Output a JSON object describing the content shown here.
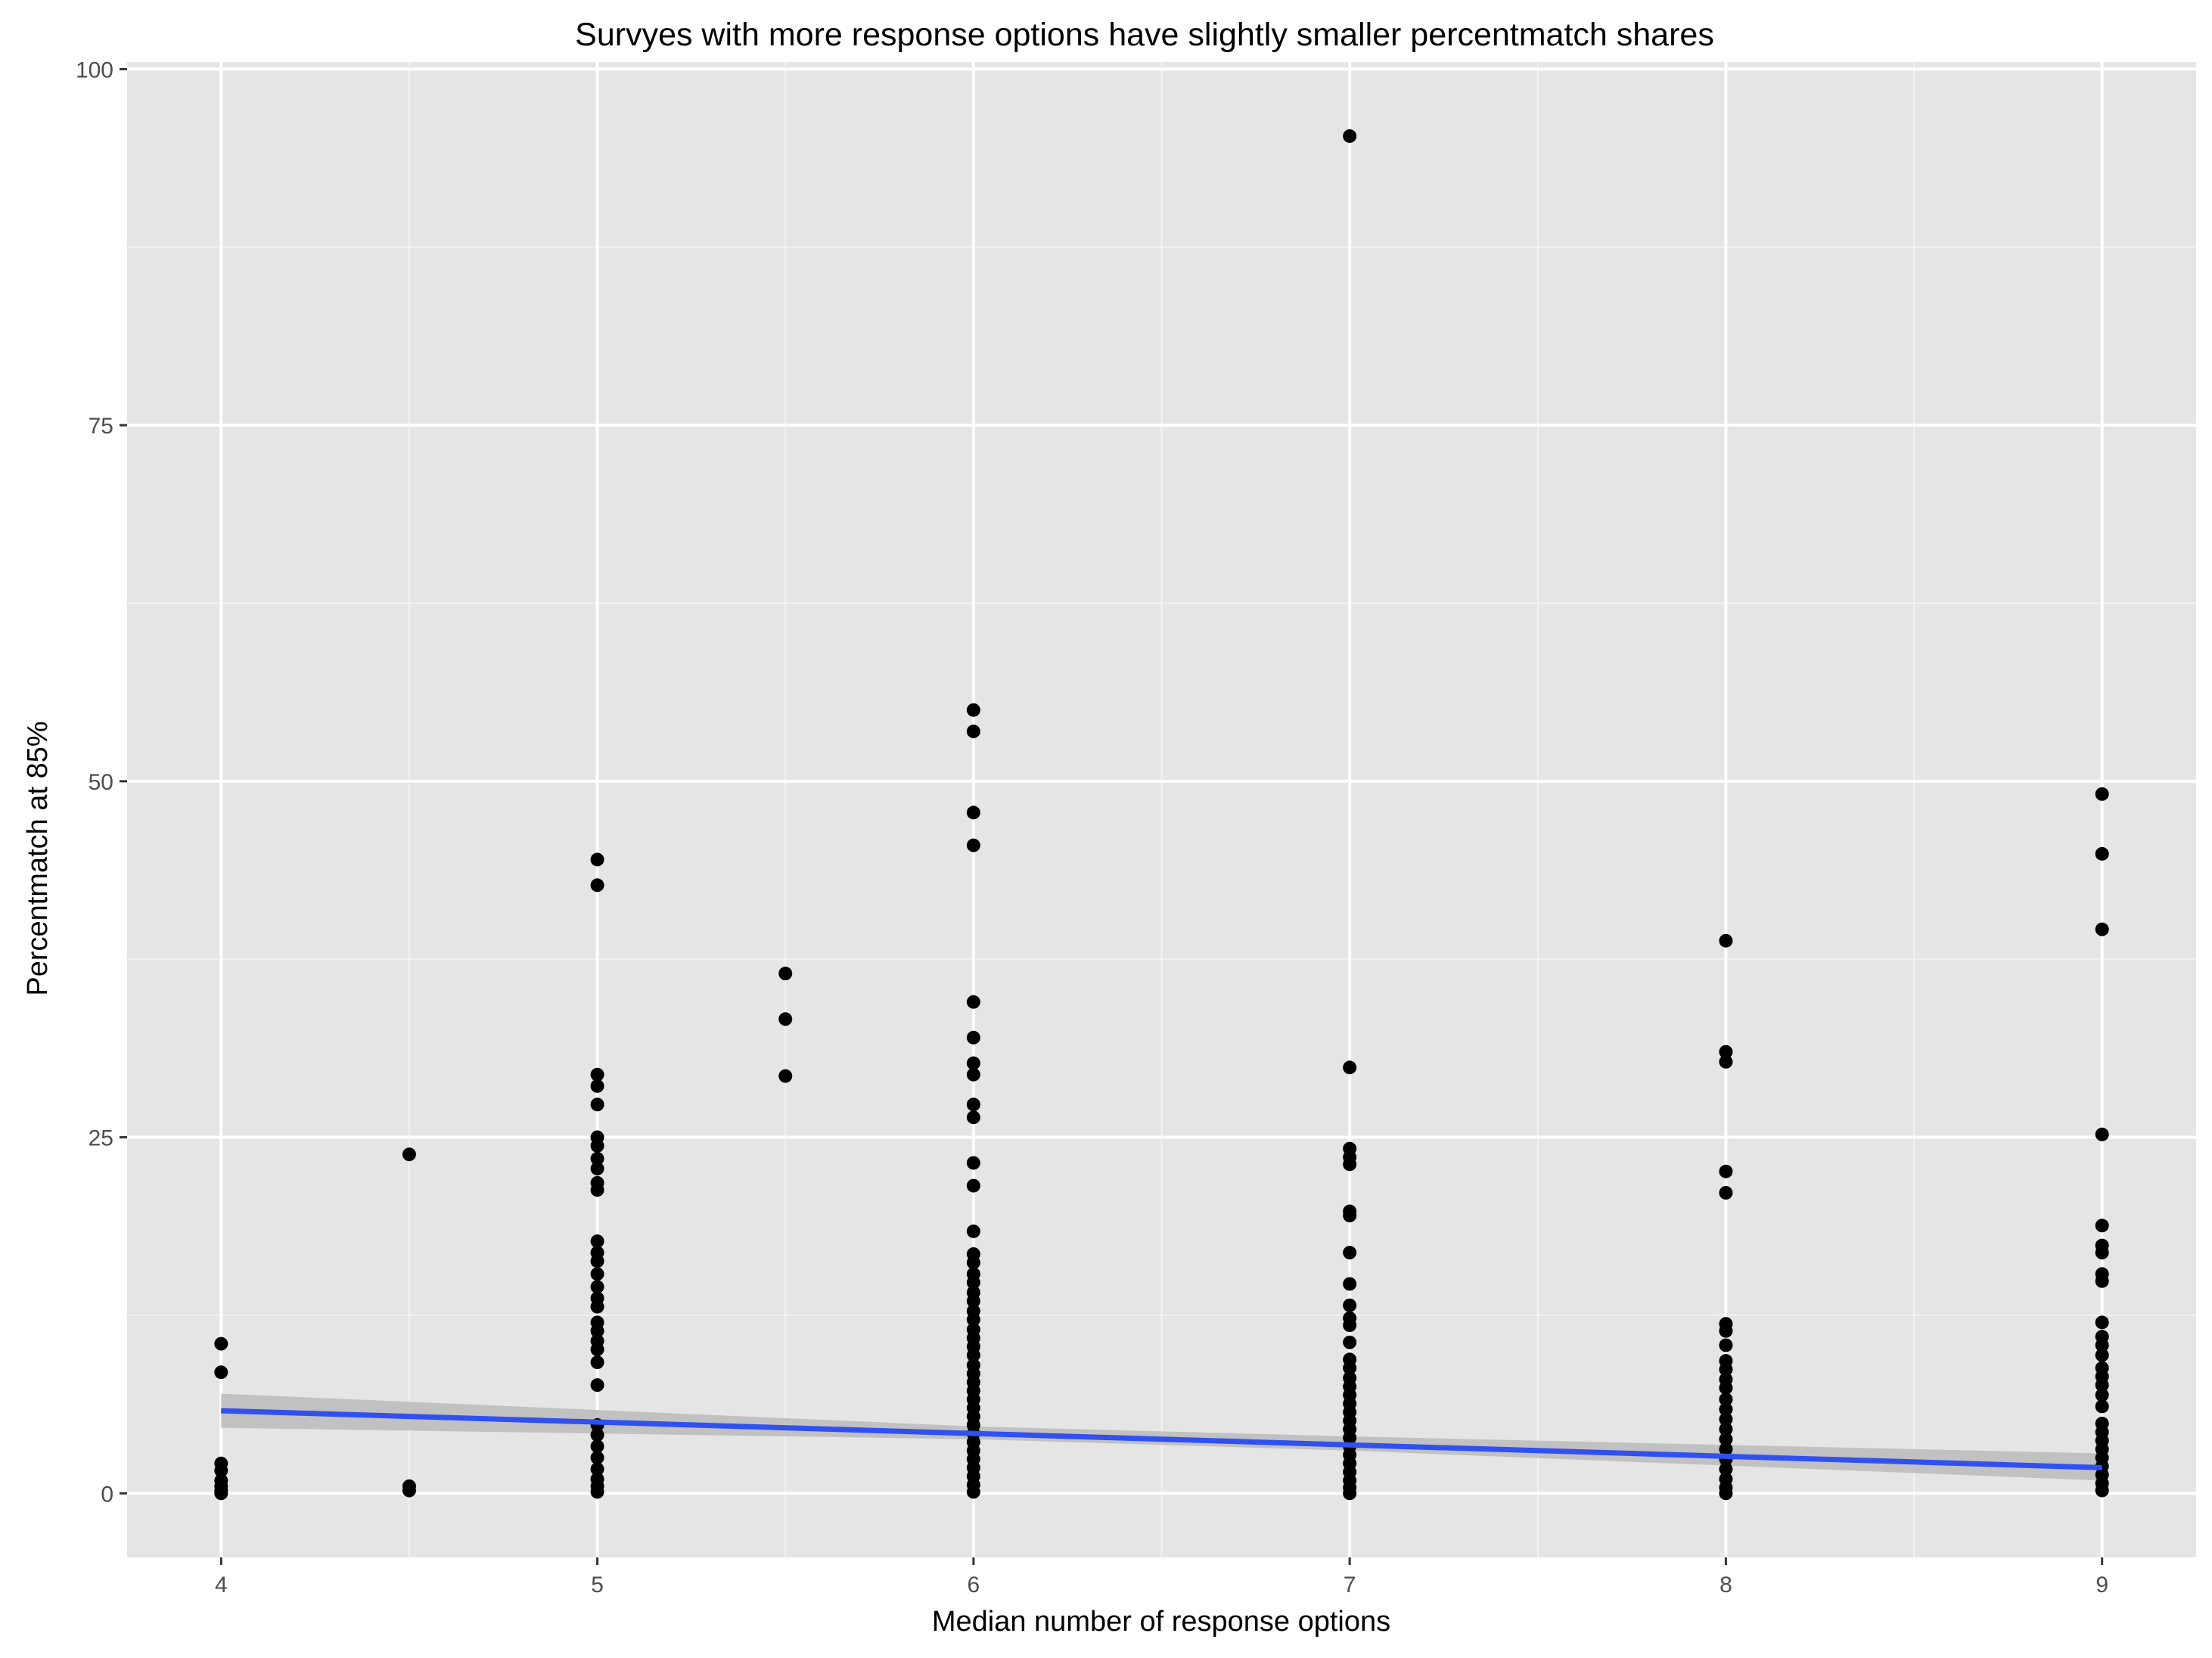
{
  "chart_data": {
    "type": "scatter",
    "title": "Survyes with more response options have slightly smaller percentmatch shares",
    "xlabel": "Median number of response options",
    "ylabel": "Percentmatch at 85%",
    "xlim": [
      3.75,
      9.25
    ],
    "ylim": [
      -4.5,
      100.5
    ],
    "x_ticks": [
      4,
      5,
      6,
      7,
      8,
      9
    ],
    "y_ticks": [
      0,
      25,
      50,
      75,
      100
    ],
    "x_tick_labels": [
      "4",
      "5",
      "6",
      "7",
      "8",
      "9"
    ],
    "y_tick_labels": [
      "0",
      "25",
      "50",
      "75",
      "100"
    ],
    "grid": true,
    "legend": "none",
    "colors": {
      "panel_background": "#e5e5e5",
      "grid_major": "#ffffff",
      "grid_minor": "#f2f2f2",
      "points": "#000000",
      "trend_line": "#3050f0",
      "confidence_band": "#bdbdbd"
    },
    "points": [
      {
        "x": 4,
        "y": 10.5
      },
      {
        "x": 4,
        "y": 8.5
      },
      {
        "x": 4,
        "y": 2.1
      },
      {
        "x": 4,
        "y": 1.6
      },
      {
        "x": 4,
        "y": 0.9
      },
      {
        "x": 4,
        "y": 0.5
      },
      {
        "x": 4,
        "y": 0.2
      },
      {
        "x": 4,
        "y": 0.0
      },
      {
        "x": 4.5,
        "y": 23.8
      },
      {
        "x": 4.5,
        "y": 0.5
      },
      {
        "x": 4.5,
        "y": 0.2
      },
      {
        "x": 5,
        "y": 44.5
      },
      {
        "x": 5,
        "y": 42.7
      },
      {
        "x": 5,
        "y": 29.4
      },
      {
        "x": 5,
        "y": 28.6
      },
      {
        "x": 5,
        "y": 27.3
      },
      {
        "x": 5,
        "y": 25.0
      },
      {
        "x": 5,
        "y": 24.4
      },
      {
        "x": 5,
        "y": 23.5
      },
      {
        "x": 5,
        "y": 22.8
      },
      {
        "x": 5,
        "y": 21.8
      },
      {
        "x": 5,
        "y": 21.3
      },
      {
        "x": 5,
        "y": 17.7
      },
      {
        "x": 5,
        "y": 16.9
      },
      {
        "x": 5,
        "y": 16.3
      },
      {
        "x": 5,
        "y": 15.4
      },
      {
        "x": 5,
        "y": 14.5
      },
      {
        "x": 5,
        "y": 13.7
      },
      {
        "x": 5,
        "y": 13.1
      },
      {
        "x": 5,
        "y": 12.0
      },
      {
        "x": 5,
        "y": 11.4
      },
      {
        "x": 5,
        "y": 10.7
      },
      {
        "x": 5,
        "y": 10.1
      },
      {
        "x": 5,
        "y": 9.2
      },
      {
        "x": 5,
        "y": 7.6
      },
      {
        "x": 5,
        "y": 4.8
      },
      {
        "x": 5,
        "y": 4.1
      },
      {
        "x": 5,
        "y": 3.3
      },
      {
        "x": 5,
        "y": 2.5
      },
      {
        "x": 5,
        "y": 1.7
      },
      {
        "x": 5,
        "y": 1.0
      },
      {
        "x": 5,
        "y": 0.5
      },
      {
        "x": 5,
        "y": 0.1
      },
      {
        "x": 5.5,
        "y": 36.5
      },
      {
        "x": 5.5,
        "y": 33.3
      },
      {
        "x": 5.5,
        "y": 29.3
      },
      {
        "x": 6,
        "y": 55.0
      },
      {
        "x": 6,
        "y": 53.5
      },
      {
        "x": 6,
        "y": 47.8
      },
      {
        "x": 6,
        "y": 45.5
      },
      {
        "x": 6,
        "y": 34.5
      },
      {
        "x": 6,
        "y": 32.0
      },
      {
        "x": 6,
        "y": 30.2
      },
      {
        "x": 6,
        "y": 29.4
      },
      {
        "x": 6,
        "y": 27.3
      },
      {
        "x": 6,
        "y": 26.4
      },
      {
        "x": 6,
        "y": 23.2
      },
      {
        "x": 6,
        "y": 21.6
      },
      {
        "x": 6,
        "y": 18.4
      },
      {
        "x": 6,
        "y": 16.8
      },
      {
        "x": 6,
        "y": 16.2
      },
      {
        "x": 6,
        "y": 15.4
      },
      {
        "x": 6,
        "y": 14.8
      },
      {
        "x": 6,
        "y": 14.1
      },
      {
        "x": 6,
        "y": 13.5
      },
      {
        "x": 6,
        "y": 12.8
      },
      {
        "x": 6,
        "y": 12.2
      },
      {
        "x": 6,
        "y": 11.5
      },
      {
        "x": 6,
        "y": 10.9
      },
      {
        "x": 6,
        "y": 10.3
      },
      {
        "x": 6,
        "y": 9.7
      },
      {
        "x": 6,
        "y": 9.0
      },
      {
        "x": 6,
        "y": 8.4
      },
      {
        "x": 6,
        "y": 7.8
      },
      {
        "x": 6,
        "y": 7.2
      },
      {
        "x": 6,
        "y": 6.6
      },
      {
        "x": 6,
        "y": 6.0
      },
      {
        "x": 6,
        "y": 5.4
      },
      {
        "x": 6,
        "y": 4.8
      },
      {
        "x": 6,
        "y": 4.2
      },
      {
        "x": 6,
        "y": 3.6
      },
      {
        "x": 6,
        "y": 3.0
      },
      {
        "x": 6,
        "y": 2.4
      },
      {
        "x": 6,
        "y": 1.8
      },
      {
        "x": 6,
        "y": 1.2
      },
      {
        "x": 6,
        "y": 0.6
      },
      {
        "x": 6,
        "y": 0.1
      },
      {
        "x": 7,
        "y": 95.3
      },
      {
        "x": 7,
        "y": 29.9
      },
      {
        "x": 7,
        "y": 24.2
      },
      {
        "x": 7,
        "y": 23.6
      },
      {
        "x": 7,
        "y": 23.1
      },
      {
        "x": 7,
        "y": 19.8
      },
      {
        "x": 7,
        "y": 19.5
      },
      {
        "x": 7,
        "y": 16.9
      },
      {
        "x": 7,
        "y": 14.7
      },
      {
        "x": 7,
        "y": 13.2
      },
      {
        "x": 7,
        "y": 12.3
      },
      {
        "x": 7,
        "y": 11.8
      },
      {
        "x": 7,
        "y": 10.6
      },
      {
        "x": 7,
        "y": 9.4
      },
      {
        "x": 7,
        "y": 8.8
      },
      {
        "x": 7,
        "y": 8.1
      },
      {
        "x": 7,
        "y": 7.5
      },
      {
        "x": 7,
        "y": 6.9
      },
      {
        "x": 7,
        "y": 6.3
      },
      {
        "x": 7,
        "y": 5.7
      },
      {
        "x": 7,
        "y": 5.1
      },
      {
        "x": 7,
        "y": 4.5
      },
      {
        "x": 7,
        "y": 3.9
      },
      {
        "x": 7,
        "y": 3.3
      },
      {
        "x": 7,
        "y": 2.7
      },
      {
        "x": 7,
        "y": 2.1
      },
      {
        "x": 7,
        "y": 1.5
      },
      {
        "x": 7,
        "y": 0.9
      },
      {
        "x": 7,
        "y": 0.4
      },
      {
        "x": 7,
        "y": 0.0
      },
      {
        "x": 8,
        "y": 38.8
      },
      {
        "x": 8,
        "y": 31.0
      },
      {
        "x": 8,
        "y": 30.3
      },
      {
        "x": 8,
        "y": 22.6
      },
      {
        "x": 8,
        "y": 21.1
      },
      {
        "x": 8,
        "y": 11.9
      },
      {
        "x": 8,
        "y": 11.4
      },
      {
        "x": 8,
        "y": 10.4
      },
      {
        "x": 8,
        "y": 9.3
      },
      {
        "x": 8,
        "y": 8.7
      },
      {
        "x": 8,
        "y": 8.0
      },
      {
        "x": 8,
        "y": 7.4
      },
      {
        "x": 8,
        "y": 6.6
      },
      {
        "x": 8,
        "y": 5.9
      },
      {
        "x": 8,
        "y": 5.2
      },
      {
        "x": 8,
        "y": 4.5
      },
      {
        "x": 8,
        "y": 3.8
      },
      {
        "x": 8,
        "y": 3.1
      },
      {
        "x": 8,
        "y": 2.4
      },
      {
        "x": 8,
        "y": 1.7
      },
      {
        "x": 8,
        "y": 1.0
      },
      {
        "x": 8,
        "y": 0.4
      },
      {
        "x": 8,
        "y": 0.0
      },
      {
        "x": 9,
        "y": 49.1
      },
      {
        "x": 9,
        "y": 44.9
      },
      {
        "x": 9,
        "y": 39.6
      },
      {
        "x": 9,
        "y": 25.2
      },
      {
        "x": 9,
        "y": 18.8
      },
      {
        "x": 9,
        "y": 17.4
      },
      {
        "x": 9,
        "y": 16.9
      },
      {
        "x": 9,
        "y": 15.4
      },
      {
        "x": 9,
        "y": 14.9
      },
      {
        "x": 9,
        "y": 12.0
      },
      {
        "x": 9,
        "y": 11.0
      },
      {
        "x": 9,
        "y": 10.4
      },
      {
        "x": 9,
        "y": 9.7
      },
      {
        "x": 9,
        "y": 8.8
      },
      {
        "x": 9,
        "y": 8.2
      },
      {
        "x": 9,
        "y": 7.6
      },
      {
        "x": 9,
        "y": 6.9
      },
      {
        "x": 9,
        "y": 6.1
      },
      {
        "x": 9,
        "y": 4.9
      },
      {
        "x": 9,
        "y": 4.3
      },
      {
        "x": 9,
        "y": 3.7
      },
      {
        "x": 9,
        "y": 3.1
      },
      {
        "x": 9,
        "y": 2.5
      },
      {
        "x": 9,
        "y": 1.9
      },
      {
        "x": 9,
        "y": 1.3
      },
      {
        "x": 9,
        "y": 0.7
      },
      {
        "x": 9,
        "y": 0.2
      }
    ],
    "trend_line": {
      "method": "linear",
      "x": [
        4,
        9
      ],
      "y": [
        5.8,
        1.8
      ]
    },
    "confidence_band": {
      "x": [
        4,
        6,
        7,
        9
      ],
      "lower": [
        4.6,
        3.8,
        3.0,
        0.9
      ],
      "upper": [
        7.0,
        4.7,
        4.0,
        2.8
      ]
    }
  }
}
